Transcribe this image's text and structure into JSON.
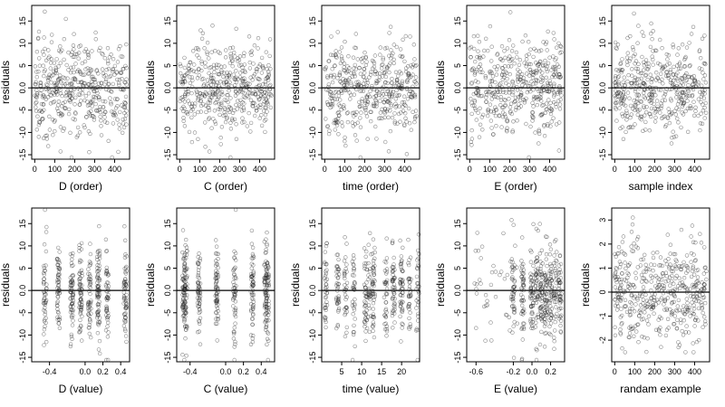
{
  "chart_data": [
    {
      "type": "scatter",
      "series_count": 460,
      "x_distribution": "uniform",
      "xlabel": "D (order)",
      "ylabel": "residuals",
      "xlim": [
        -15,
        475
      ],
      "ylim": [
        -16,
        18.5
      ],
      "xticks": [
        0,
        100,
        200,
        300,
        400
      ],
      "xtick_labels": [
        "0",
        "100",
        "200",
        "300",
        "400"
      ],
      "yticks": [
        -15,
        -10,
        -5,
        0,
        5,
        10,
        15
      ],
      "ytick_labels": [
        "-15",
        "-10",
        "-5",
        "0.0",
        "5",
        "10",
        "15"
      ],
      "hline": 0
    },
    {
      "type": "scatter",
      "series_count": 460,
      "x_distribution": "uniform",
      "xlabel": "C (order)",
      "ylabel": "residuals",
      "xlim": [
        -15,
        475
      ],
      "ylim": [
        -16,
        18.5
      ],
      "xticks": [
        0,
        100,
        200,
        300,
        400
      ],
      "xtick_labels": [
        "0",
        "100",
        "200",
        "300",
        "400"
      ],
      "yticks": [
        -15,
        -10,
        -5,
        0,
        5,
        10,
        15
      ],
      "ytick_labels": [
        "-15",
        "-10",
        "-5",
        "0.0",
        "5",
        "10",
        "15"
      ],
      "hline": 0
    },
    {
      "type": "scatter",
      "series_count": 460,
      "x_distribution": "uniform",
      "xlabel": "time (order)",
      "ylabel": "residuals",
      "xlim": [
        -15,
        475
      ],
      "ylim": [
        -16,
        18.5
      ],
      "xticks": [
        0,
        100,
        200,
        300,
        400
      ],
      "xtick_labels": [
        "0",
        "100",
        "200",
        "300",
        "400"
      ],
      "yticks": [
        -15,
        -10,
        -5,
        0,
        5,
        10,
        15
      ],
      "ytick_labels": [
        "-15",
        "-10",
        "-5",
        "0.0",
        "5",
        "10",
        "15"
      ],
      "hline": 0
    },
    {
      "type": "scatter",
      "series_count": 460,
      "x_distribution": "uniform",
      "xlabel": "E (order)",
      "ylabel": "residuals",
      "xlim": [
        -15,
        475
      ],
      "ylim": [
        -16,
        18.5
      ],
      "xticks": [
        0,
        100,
        200,
        300,
        400
      ],
      "xtick_labels": [
        "0",
        "100",
        "200",
        "300",
        "400"
      ],
      "yticks": [
        -15,
        -10,
        -5,
        0,
        5,
        10,
        15
      ],
      "ytick_labels": [
        "-15",
        "-10",
        "-5",
        "0.0",
        "5",
        "10",
        "15"
      ],
      "hline": 0
    },
    {
      "type": "scatter",
      "series_count": 460,
      "x_distribution": "uniform",
      "xlabel": "sample index",
      "ylabel": "residuals",
      "xlim": [
        -15,
        475
      ],
      "ylim": [
        -16,
        18.5
      ],
      "xticks": [
        0,
        100,
        200,
        300,
        400
      ],
      "xtick_labels": [
        "0",
        "100",
        "200",
        "300",
        "400"
      ],
      "yticks": [
        -15,
        -10,
        -5,
        0,
        5,
        10,
        15
      ],
      "ytick_labels": [
        "-15",
        "-10",
        "-5",
        "0.0",
        "5",
        "10",
        "15"
      ],
      "hline": 0
    },
    {
      "type": "scatter",
      "series_count": 460,
      "x_distribution": "clustered",
      "x_clusters": [
        -0.45,
        -0.3,
        -0.15,
        -0.05,
        0.05,
        0.15,
        0.25,
        0.45
      ],
      "xlabel": "D (value)",
      "ylabel": "residuals",
      "xlim": [
        -0.6,
        0.5
      ],
      "ylim": [
        -16,
        18.5
      ],
      "xticks": [
        -0.4,
        0.0,
        0.2,
        0.4
      ],
      "xtick_labels": [
        "-0.4",
        "0.0",
        "0.2",
        "0.4"
      ],
      "yticks": [
        -15,
        -10,
        -5,
        0,
        5,
        10,
        15
      ],
      "ytick_labels": [
        "-15",
        "-10",
        "-5",
        "0.0",
        "5",
        "10",
        "15"
      ],
      "hline": 0
    },
    {
      "type": "scatter",
      "series_count": 460,
      "x_distribution": "clustered",
      "x_clusters": [
        -0.47,
        -0.45,
        -0.3,
        -0.1,
        0.1,
        0.3,
        0.45,
        0.47
      ],
      "xlabel": "C (value)",
      "ylabel": "residuals",
      "xlim": [
        -0.55,
        0.55
      ],
      "ylim": [
        -16,
        18.5
      ],
      "xticks": [
        -0.4,
        0.0,
        0.2,
        0.4
      ],
      "xtick_labels": [
        "-0.4",
        "0.0",
        "0.2",
        "0.4"
      ],
      "yticks": [
        -15,
        -10,
        -5,
        0,
        5,
        10,
        15
      ],
      "ytick_labels": [
        "-15",
        "-10",
        "-5",
        "0.0",
        "5",
        "10",
        "15"
      ],
      "hline": 0
    },
    {
      "type": "scatter",
      "series_count": 460,
      "x_distribution": "clustered",
      "x_clusters": [
        1,
        4,
        6,
        8,
        11,
        12,
        13,
        16,
        18,
        20,
        22,
        24
      ],
      "xlabel": "time (value)",
      "ylabel": "residuals",
      "xlim": [
        0,
        24.5
      ],
      "ylim": [
        -16,
        18.5
      ],
      "xticks": [
        5,
        10,
        15,
        20
      ],
      "xtick_labels": [
        "5",
        "10",
        "15",
        "20"
      ],
      "yticks": [
        -15,
        -10,
        -5,
        0,
        5,
        10,
        15
      ],
      "ytick_labels": [
        "-15",
        "-10",
        "-5",
        "0.0",
        "5",
        "10",
        "15"
      ],
      "hline": 0
    },
    {
      "type": "scatter",
      "series_count": 460,
      "x_distribution": "skewed",
      "x_clusters": [
        -0.2,
        -0.1,
        0.0,
        0.05,
        0.1,
        0.15,
        0.2,
        0.25,
        0.3
      ],
      "xlabel": "E (value)",
      "ylabel": "residuals",
      "xlim": [
        -0.7,
        0.35
      ],
      "ylim": [
        -16,
        18.5
      ],
      "xticks": [
        -0.6,
        -0.2,
        0.0,
        0.2
      ],
      "xtick_labels": [
        "-0.6",
        "-0.2",
        "0.0",
        "0.2"
      ],
      "yticks": [
        -15,
        -10,
        -5,
        0,
        5,
        10,
        15
      ],
      "ytick_labels": [
        "-15",
        "-10",
        "-5",
        "0.0",
        "5",
        "10",
        "15"
      ],
      "hline": 0
    },
    {
      "type": "scatter",
      "series_count": 460,
      "x_distribution": "uniform",
      "xlabel": "randam example",
      "ylabel": "residuals",
      "xlim": [
        -15,
        475
      ],
      "ylim": [
        -2.9,
        3.5
      ],
      "xticks": [
        0,
        100,
        200,
        300,
        400
      ],
      "xtick_labels": [
        "0",
        "100",
        "200",
        "300",
        "400"
      ],
      "yticks": [
        -2,
        -1,
        0,
        1,
        2,
        3
      ],
      "ytick_labels": [
        "-2",
        "-1",
        "0",
        "1",
        "2",
        "3"
      ],
      "hline": 0
    }
  ]
}
